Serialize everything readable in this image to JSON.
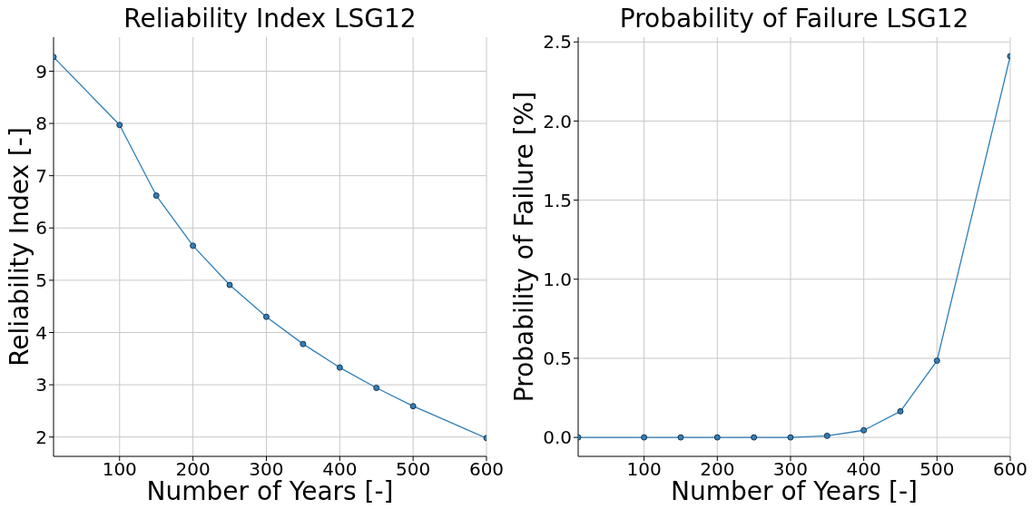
{
  "chart_data": [
    {
      "type": "line",
      "title": "Reliability Index LSG12",
      "xlabel": "Number of Years [-]",
      "ylabel": "Reliability Index [-]",
      "x": [
        10,
        100,
        150,
        200,
        250,
        300,
        350,
        400,
        450,
        500,
        600
      ],
      "values": [
        9.27,
        7.97,
        6.62,
        5.66,
        4.91,
        4.3,
        3.78,
        3.33,
        2.94,
        2.59,
        1.98
      ],
      "color": "#2f7fb8",
      "marker": "circle",
      "grid": true,
      "xlim": [
        10,
        600
      ],
      "xticks": [
        100,
        200,
        300,
        400,
        500,
        600
      ],
      "ylim": [
        1.63,
        9.65
      ],
      "yticks": [
        2,
        3,
        4,
        5,
        6,
        7,
        8,
        9
      ]
    },
    {
      "type": "line",
      "title": "Probability of Failure LSG12",
      "xlabel": "Number of Years [-]",
      "ylabel": "Probability of Failure [%]",
      "x": [
        10,
        100,
        150,
        200,
        250,
        300,
        350,
        400,
        450,
        500,
        600
      ],
      "values": [
        0,
        0,
        0,
        0,
        0,
        0,
        0.01,
        0.045,
        0.165,
        0.485,
        2.41
      ],
      "color": "#2f7fb8",
      "marker": "circle",
      "grid": true,
      "xlim": [
        10,
        600
      ],
      "xticks": [
        100,
        200,
        300,
        400,
        500,
        600
      ],
      "ylim": [
        -0.12,
        2.53
      ],
      "yticks": [
        {
          "value": 0,
          "label": "0.0"
        },
        {
          "value": 0.5,
          "label": "0.5"
        },
        {
          "value": 1,
          "label": "1.0"
        },
        {
          "value": 1.5,
          "label": "1.5"
        },
        {
          "value": 2,
          "label": "2.0"
        },
        {
          "value": 2.5,
          "label": "2.5"
        }
      ]
    }
  ]
}
